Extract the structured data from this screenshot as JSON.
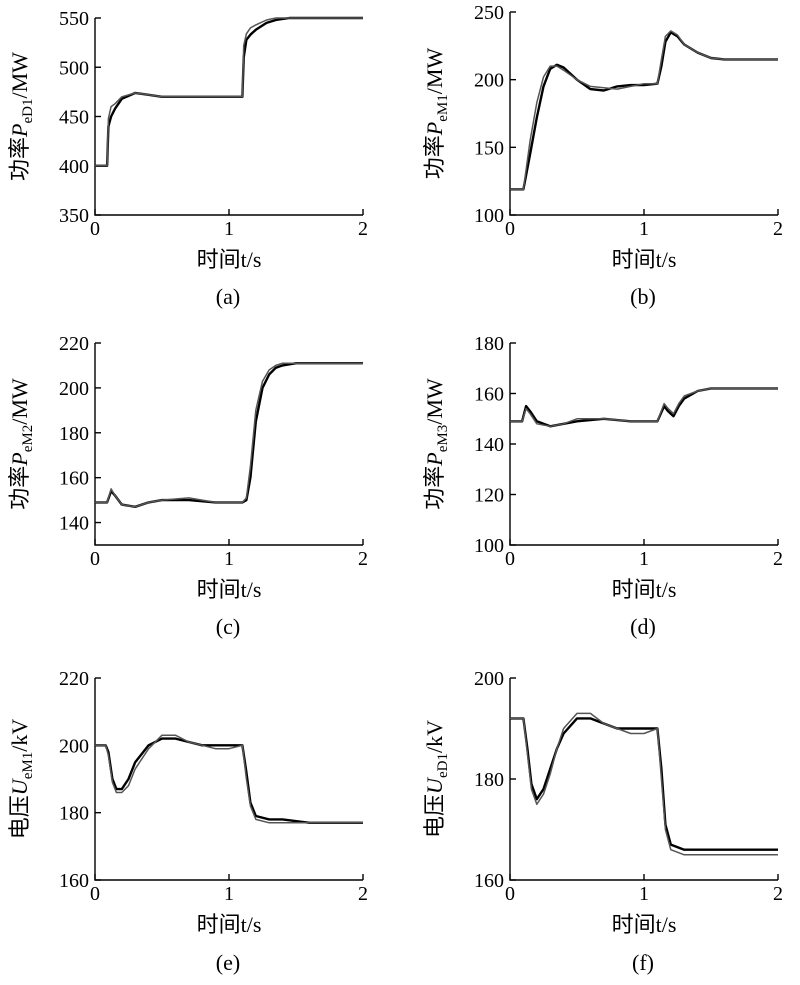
{
  "x_unit_label": "时间t/s",
  "chart_data": [
    {
      "type": "line",
      "caption": "(a)",
      "ylabel_prefix": "功率",
      "ylabel_symbol": "P",
      "ylabel_sub": "eD1",
      "ylabel_unit": "/MW",
      "xlim": [
        0,
        2
      ],
      "ylim": [
        350,
        550
      ],
      "xticks": [
        0,
        1,
        2
      ],
      "yticks": [
        350,
        400,
        450,
        500,
        550
      ],
      "series": [
        {
          "x": [
            0,
            0.08,
            0.09,
            0.1,
            0.12,
            0.15,
            0.2,
            0.3,
            0.4,
            0.5,
            0.7,
            0.9,
            1.0,
            1.09,
            1.1,
            1.11,
            1.13,
            1.16,
            1.2,
            1.28,
            1.35,
            1.45,
            1.6,
            1.8,
            2.0
          ],
          "y": [
            400,
            400,
            400,
            440,
            450,
            458,
            468,
            474,
            472,
            470,
            470,
            470,
            470,
            470,
            470,
            510,
            528,
            533,
            538,
            545,
            548,
            550,
            550,
            550,
            550
          ]
        },
        {
          "x": [
            0,
            0.08,
            0.09,
            0.1,
            0.12,
            0.15,
            0.2,
            0.3,
            0.4,
            0.5,
            0.7,
            0.9,
            1.0,
            1.09,
            1.1,
            1.11,
            1.13,
            1.16,
            1.2,
            1.28,
            1.35,
            1.45,
            1.6,
            1.8,
            2.0
          ],
          "y": [
            400,
            400,
            400,
            448,
            460,
            463,
            470,
            474,
            472,
            470,
            470,
            470,
            470,
            470,
            470,
            522,
            534,
            540,
            543,
            548,
            550,
            550,
            550,
            550,
            550
          ]
        }
      ]
    },
    {
      "type": "line",
      "caption": "(b)",
      "ylabel_prefix": "功率",
      "ylabel_symbol": "P",
      "ylabel_sub": "eM1",
      "ylabel_unit": "/MW",
      "xlim": [
        0,
        2
      ],
      "ylim": [
        100,
        250
      ],
      "xticks": [
        0,
        1,
        2
      ],
      "yticks": [
        100,
        150,
        200,
        250
      ],
      "series": [
        {
          "x": [
            0,
            0.1,
            0.15,
            0.2,
            0.25,
            0.3,
            0.35,
            0.4,
            0.5,
            0.6,
            0.7,
            0.8,
            0.9,
            1.0,
            1.1,
            1.13,
            1.16,
            1.2,
            1.25,
            1.3,
            1.4,
            1.5,
            1.6,
            1.8,
            2.0
          ],
          "y": [
            119,
            119,
            145,
            172,
            195,
            208,
            211,
            209,
            200,
            193,
            192,
            195,
            196,
            196,
            197,
            210,
            228,
            235,
            232,
            226,
            220,
            216,
            215,
            215,
            215
          ]
        },
        {
          "x": [
            0,
            0.1,
            0.15,
            0.2,
            0.25,
            0.3,
            0.35,
            0.4,
            0.5,
            0.6,
            0.7,
            0.8,
            0.9,
            1.0,
            1.1,
            1.13,
            1.16,
            1.2,
            1.25,
            1.3,
            1.4,
            1.5,
            1.6,
            1.8,
            2.0
          ],
          "y": [
            119,
            119,
            155,
            183,
            202,
            210,
            210,
            207,
            200,
            195,
            194,
            193,
            195,
            197,
            197,
            215,
            232,
            236,
            233,
            226,
            220,
            216,
            215,
            215,
            215
          ]
        }
      ]
    },
    {
      "type": "line",
      "caption": "(c)",
      "ylabel_prefix": "功率",
      "ylabel_symbol": "P",
      "ylabel_sub": "eM2",
      "ylabel_unit": "/MW",
      "xlim": [
        0,
        2
      ],
      "ylim": [
        130,
        220
      ],
      "xticks": [
        0,
        1,
        2
      ],
      "yticks": [
        140,
        160,
        180,
        200,
        220
      ],
      "series": [
        {
          "x": [
            0,
            0.09,
            0.12,
            0.15,
            0.2,
            0.3,
            0.4,
            0.5,
            0.7,
            0.9,
            1.0,
            1.1,
            1.13,
            1.16,
            1.2,
            1.25,
            1.3,
            1.35,
            1.4,
            1.5,
            1.6,
            1.8,
            2.0
          ],
          "y": [
            149,
            149,
            154,
            152,
            148,
            147,
            149,
            150,
            150,
            149,
            149,
            149,
            150,
            160,
            185,
            200,
            206,
            209,
            210,
            211,
            211,
            211,
            211
          ]
        },
        {
          "x": [
            0,
            0.09,
            0.12,
            0.15,
            0.2,
            0.3,
            0.4,
            0.5,
            0.7,
            0.9,
            1.0,
            1.1,
            1.13,
            1.16,
            1.2,
            1.25,
            1.3,
            1.35,
            1.4,
            1.5,
            1.6,
            1.8,
            2.0
          ],
          "y": [
            149,
            149,
            155,
            152,
            148,
            147,
            149,
            150,
            151,
            149,
            149,
            149,
            151,
            165,
            190,
            203,
            208,
            210,
            211,
            211,
            211,
            211,
            211
          ]
        }
      ]
    },
    {
      "type": "line",
      "caption": "(d)",
      "ylabel_prefix": "功率",
      "ylabel_symbol": "P",
      "ylabel_sub": "eM3",
      "ylabel_unit": "/MW",
      "xlim": [
        0,
        2
      ],
      "ylim": [
        100,
        180
      ],
      "xticks": [
        0,
        1,
        2
      ],
      "yticks": [
        100,
        120,
        140,
        160,
        180
      ],
      "series": [
        {
          "x": [
            0,
            0.09,
            0.12,
            0.15,
            0.2,
            0.3,
            0.4,
            0.5,
            0.7,
            0.9,
            1.0,
            1.1,
            1.15,
            1.18,
            1.22,
            1.26,
            1.3,
            1.4,
            1.5,
            1.6,
            1.8,
            2.0
          ],
          "y": [
            149,
            149,
            155,
            153,
            149,
            147,
            148,
            149,
            150,
            149,
            149,
            149,
            155,
            153,
            151,
            155,
            158,
            161,
            162,
            162,
            162,
            162
          ]
        },
        {
          "x": [
            0,
            0.09,
            0.12,
            0.15,
            0.2,
            0.3,
            0.4,
            0.5,
            0.7,
            0.9,
            1.0,
            1.1,
            1.15,
            1.18,
            1.22,
            1.26,
            1.3,
            1.4,
            1.5,
            1.6,
            1.8,
            2.0
          ],
          "y": [
            149,
            149,
            154,
            152,
            148,
            147,
            148,
            150,
            150,
            149,
            149,
            149,
            156,
            154,
            152,
            156,
            159,
            161,
            162,
            162,
            162,
            162
          ]
        }
      ]
    },
    {
      "type": "line",
      "caption": "(e)",
      "ylabel_prefix": "电压",
      "ylabel_symbol": "U",
      "ylabel_sub": "eM1",
      "ylabel_unit": "/kV",
      "xlim": [
        0,
        2
      ],
      "ylim": [
        160,
        220
      ],
      "xticks": [
        0,
        1,
        2
      ],
      "yticks": [
        160,
        180,
        200,
        220
      ],
      "series": [
        {
          "x": [
            0,
            0.08,
            0.1,
            0.13,
            0.16,
            0.2,
            0.25,
            0.3,
            0.4,
            0.5,
            0.6,
            0.7,
            0.8,
            0.9,
            1.0,
            1.1,
            1.13,
            1.16,
            1.2,
            1.3,
            1.4,
            1.6,
            1.8,
            2.0
          ],
          "y": [
            200,
            200,
            198,
            190,
            187,
            187,
            190,
            195,
            200,
            202,
            202,
            201,
            200,
            200,
            200,
            200,
            192,
            183,
            179,
            178,
            178,
            177,
            177,
            177
          ]
        },
        {
          "x": [
            0,
            0.08,
            0.1,
            0.13,
            0.16,
            0.2,
            0.25,
            0.3,
            0.4,
            0.5,
            0.6,
            0.7,
            0.8,
            0.9,
            1.0,
            1.1,
            1.13,
            1.16,
            1.2,
            1.3,
            1.4,
            1.6,
            1.8,
            2.0
          ],
          "y": [
            200,
            200,
            197,
            189,
            186,
            186,
            188,
            193,
            199,
            203,
            203,
            201,
            200,
            199,
            199,
            200,
            190,
            182,
            178,
            177,
            177,
            177,
            177,
            177
          ]
        }
      ]
    },
    {
      "type": "line",
      "caption": "(f)",
      "ylabel_prefix": "电压",
      "ylabel_symbol": "U",
      "ylabel_sub": "eD1",
      "ylabel_unit": "/kV",
      "xlim": [
        0,
        2
      ],
      "ylim": [
        160,
        200
      ],
      "xticks": [
        0,
        1,
        2
      ],
      "yticks": [
        160,
        180,
        200
      ],
      "series": [
        {
          "x": [
            0,
            0.1,
            0.13,
            0.16,
            0.2,
            0.25,
            0.3,
            0.35,
            0.4,
            0.5,
            0.6,
            0.7,
            0.8,
            0.9,
            1.0,
            1.1,
            1.13,
            1.16,
            1.2,
            1.3,
            1.4,
            1.6,
            1.8,
            2.0
          ],
          "y": [
            192,
            192,
            186,
            179,
            176,
            178,
            182,
            186,
            189,
            192,
            192,
            191,
            190,
            190,
            190,
            190,
            182,
            171,
            167,
            166,
            166,
            166,
            166,
            166
          ]
        },
        {
          "x": [
            0,
            0.1,
            0.13,
            0.16,
            0.2,
            0.25,
            0.3,
            0.35,
            0.4,
            0.5,
            0.6,
            0.7,
            0.8,
            0.9,
            1.0,
            1.1,
            1.13,
            1.16,
            1.2,
            1.3,
            1.4,
            1.6,
            1.8,
            2.0
          ],
          "y": [
            192,
            192,
            185,
            178,
            175,
            177,
            181,
            186,
            190,
            193,
            193,
            191,
            190,
            189,
            189,
            190,
            180,
            170,
            166,
            165,
            165,
            165,
            165,
            165
          ]
        }
      ]
    }
  ]
}
